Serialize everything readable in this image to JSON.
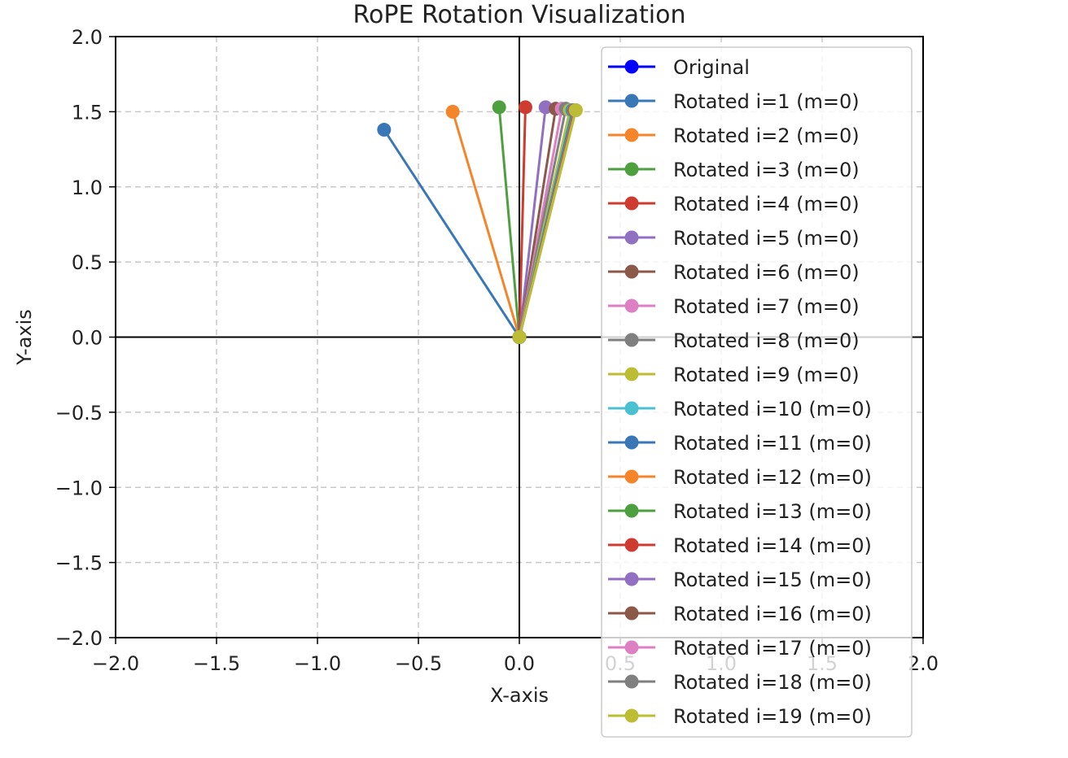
{
  "chart_data": {
    "type": "line",
    "title": "RoPE Rotation Visualization",
    "xlabel": "X-axis",
    "ylabel": "Y-axis",
    "xlim": [
      -2.0,
      2.0
    ],
    "ylim": [
      -2.0,
      2.0
    ],
    "xticks": [
      "−2.0",
      "−1.5",
      "−1.0",
      "−0.5",
      "0.0",
      "0.5",
      "1.0",
      "1.5",
      "2.0"
    ],
    "yticks": [
      "2.0",
      "1.5",
      "1.0",
      "0.5",
      "0.0",
      "−0.5",
      "−1.0",
      "−1.5",
      "−2.0"
    ],
    "grid": true,
    "axes_lines_at_origin": true,
    "legend_position": "top-right",
    "series": [
      {
        "name": "Original",
        "color": "#0000ff",
        "x": [
          0,
          0
        ],
        "y": [
          0,
          0
        ]
      },
      {
        "name": "Rotated i=1 (m=0)",
        "color": "#3a77b6",
        "x": [
          0,
          -0.67
        ],
        "y": [
          0,
          1.38
        ]
      },
      {
        "name": "Rotated i=2 (m=0)",
        "color": "#f5852a",
        "x": [
          0,
          -0.33
        ],
        "y": [
          0,
          1.5
        ]
      },
      {
        "name": "Rotated i=3 (m=0)",
        "color": "#4ea03f",
        "x": [
          0,
          -0.1
        ],
        "y": [
          0,
          1.53
        ]
      },
      {
        "name": "Rotated i=4 (m=0)",
        "color": "#cd3b31",
        "x": [
          0,
          0.03
        ],
        "y": [
          0,
          1.53
        ]
      },
      {
        "name": "Rotated i=5 (m=0)",
        "color": "#9170c2",
        "x": [
          0,
          0.13
        ],
        "y": [
          0,
          1.53
        ]
      },
      {
        "name": "Rotated i=6 (m=0)",
        "color": "#8c5949",
        "x": [
          0,
          0.18
        ],
        "y": [
          0,
          1.52
        ]
      },
      {
        "name": "Rotated i=7 (m=0)",
        "color": "#dd7fc3",
        "x": [
          0,
          0.21
        ],
        "y": [
          0,
          1.52
        ]
      },
      {
        "name": "Rotated i=8 (m=0)",
        "color": "#7f7f7f",
        "x": [
          0,
          0.23
        ],
        "y": [
          0,
          1.52
        ]
      },
      {
        "name": "Rotated i=9 (m=0)",
        "color": "#bcbd35",
        "x": [
          0,
          0.25
        ],
        "y": [
          0,
          1.51
        ]
      },
      {
        "name": "Rotated i=10 (m=0)",
        "color": "#4bc0d0",
        "x": [
          0,
          0.26
        ],
        "y": [
          0,
          1.51
        ]
      },
      {
        "name": "Rotated i=11 (m=0)",
        "color": "#3a77b6",
        "x": [
          0,
          0.265
        ],
        "y": [
          0,
          1.51
        ]
      },
      {
        "name": "Rotated i=12 (m=0)",
        "color": "#f5852a",
        "x": [
          0,
          0.27
        ],
        "y": [
          0,
          1.51
        ]
      },
      {
        "name": "Rotated i=13 (m=0)",
        "color": "#4ea03f",
        "x": [
          0,
          0.272
        ],
        "y": [
          0,
          1.51
        ]
      },
      {
        "name": "Rotated i=14 (m=0)",
        "color": "#cd3b31",
        "x": [
          0,
          0.274
        ],
        "y": [
          0,
          1.51
        ]
      },
      {
        "name": "Rotated i=15 (m=0)",
        "color": "#9170c2",
        "x": [
          0,
          0.276
        ],
        "y": [
          0,
          1.51
        ]
      },
      {
        "name": "Rotated i=16 (m=0)",
        "color": "#8c5949",
        "x": [
          0,
          0.277
        ],
        "y": [
          0,
          1.51
        ]
      },
      {
        "name": "Rotated i=17 (m=0)",
        "color": "#dd7fc3",
        "x": [
          0,
          0.278
        ],
        "y": [
          0,
          1.51
        ]
      },
      {
        "name": "Rotated i=18 (m=0)",
        "color": "#7f7f7f",
        "x": [
          0,
          0.279
        ],
        "y": [
          0,
          1.51
        ]
      },
      {
        "name": "Rotated i=19 (m=0)",
        "color": "#bcbd35",
        "x": [
          0,
          0.28
        ],
        "y": [
          0,
          1.51
        ]
      }
    ]
  }
}
